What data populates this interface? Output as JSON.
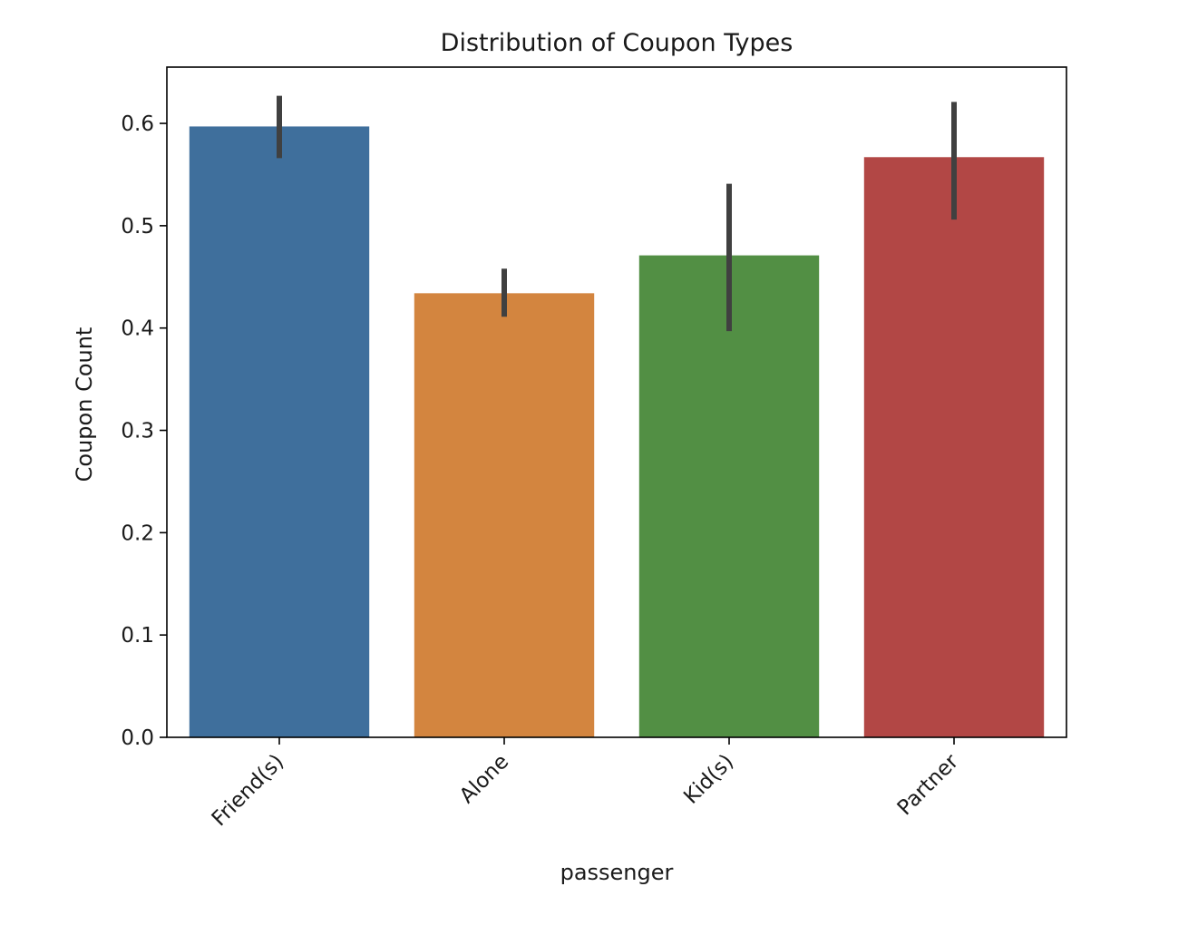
{
  "chart_data": {
    "type": "bar",
    "title": "Distribution of Coupon Types",
    "xlabel": "passenger",
    "ylabel": "Coupon Count",
    "categories": [
      "Friend(s)",
      "Alone",
      "Kid(s)",
      "Partner"
    ],
    "values": [
      0.597,
      0.434,
      0.471,
      0.567
    ],
    "error_low": [
      0.566,
      0.411,
      0.397,
      0.506
    ],
    "error_high": [
      0.627,
      0.458,
      0.541,
      0.621
    ],
    "colors": [
      "#3f6f9c",
      "#d3853f",
      "#528f44",
      "#b24745"
    ],
    "errorbar_color": "#404040",
    "ylim": [
      0,
      0.655
    ],
    "yticks": [
      0.0,
      0.1,
      0.2,
      0.3,
      0.4,
      0.5,
      0.6
    ],
    "ytick_labels": [
      "0.0",
      "0.1",
      "0.2",
      "0.3",
      "0.4",
      "0.5",
      "0.6"
    ],
    "grid": false,
    "legend": "none"
  }
}
